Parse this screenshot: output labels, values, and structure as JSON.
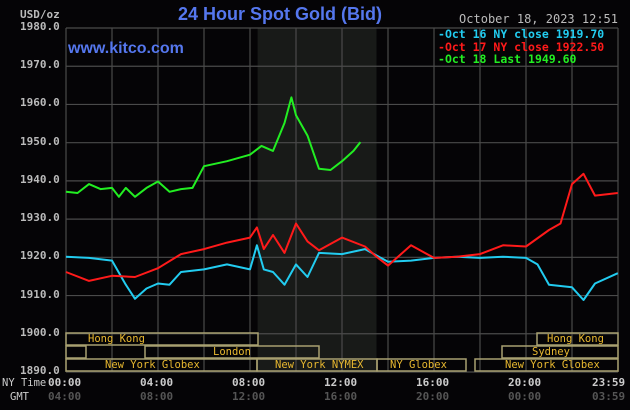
{
  "header": {
    "title": "24 Hour Spot Gold (Bid)",
    "date": "October 18, 2023 12:51",
    "unit": "USD/oz",
    "watermark": "www.kitco.com"
  },
  "legend": [
    {
      "label": "Oct 16 NY close 1919.70",
      "color": "#22ccf0"
    },
    {
      "label": "Oct 17 NY close 1922.50",
      "color": "#ff1a1a"
    },
    {
      "label": "Oct 18 Last 1949.60",
      "color": "#22ee22"
    }
  ],
  "axis": {
    "y_ticks": [
      "1980.0",
      "1970.0",
      "1960.0",
      "1950.0",
      "1940.0",
      "1930.0",
      "1920.0",
      "1910.0",
      "1900.0",
      "1890.0"
    ],
    "ny_time_label": "NY Time",
    "gmt_label": "GMT",
    "ny_ticks": [
      "00:00",
      "04:00",
      "08:00",
      "12:00",
      "16:00",
      "20:00",
      "23:59"
    ],
    "gmt_ticks": [
      "04:00",
      "08:00",
      "12:00",
      "16:00",
      "20:00",
      "00:00",
      "03:59"
    ]
  },
  "sessions": {
    "hong_kong_1": "Hong Kong",
    "london": "London",
    "ny_globex_1": "New York Globex",
    "ny_nymex": "New York NYMEX",
    "ny_globex_2": "NY Globex",
    "hong_kong_2": "Hong Kong",
    "sydney": "Sydney",
    "ny_globex_3": "New York Globex"
  },
  "chart_data": {
    "type": "line",
    "title": "24 Hour Spot Gold (Bid)",
    "xlabel": "NY Time / GMT",
    "ylabel": "USD/oz",
    "ylim": [
      1890,
      1980
    ],
    "xlim_hours": [
      0,
      24
    ],
    "grid": true,
    "legend_position": "top-right",
    "shaded_region_hours": [
      8.33,
      13.5
    ],
    "series": [
      {
        "name": "Oct 16 NY close 1919.70",
        "color": "#22ccf0",
        "x_hours": [
          0,
          1,
          2,
          2.6,
          3,
          3.5,
          4,
          4.5,
          5,
          6,
          7,
          8,
          8.3,
          8.6,
          9,
          9.5,
          10,
          10.5,
          11,
          12,
          13,
          14,
          15,
          16,
          17,
          18,
          19,
          20,
          20.5,
          21,
          22,
          22.5,
          23,
          23.99
        ],
        "values": [
          1920,
          1920,
          1919,
          1913,
          1909,
          1912,
          1913,
          1913,
          1916,
          1917,
          1918,
          1917,
          1923,
          1917,
          1916,
          1913,
          1918,
          1915,
          1921,
          1921,
          1922,
          1919,
          1919,
          1920,
          1920,
          1920,
          1920,
          1920,
          1918,
          1913,
          1912,
          1909,
          1913,
          1916
        ]
      },
      {
        "name": "Oct 17 NY close 1922.50",
        "color": "#ff1a1a",
        "x_hours": [
          0,
          1,
          2,
          3,
          4,
          5,
          6,
          7,
          8,
          8.3,
          8.6,
          9,
          9.5,
          10,
          10.5,
          11,
          12,
          13,
          13.5,
          14,
          15,
          16,
          17,
          18,
          19,
          20,
          21,
          21.5,
          22,
          22.5,
          23,
          23.99
        ],
        "values": [
          1916,
          1914,
          1915,
          1915,
          1917,
          1921,
          1922,
          1924,
          1925,
          1928,
          1922,
          1926,
          1921,
          1929,
          1924,
          1922,
          1925,
          1923,
          1920,
          1918,
          1923,
          1920,
          1920,
          1921,
          1923,
          1923,
          1927,
          1929,
          1939,
          1942,
          1936,
          1937
        ]
      },
      {
        "name": "Oct 18 Last 1949.60",
        "color": "#22ee22",
        "x_hours": [
          0,
          0.5,
          1,
          1.5,
          2,
          2.3,
          2.6,
          3,
          3.5,
          4,
          4.5,
          5,
          5.5,
          6,
          7,
          8,
          8.5,
          9,
          9.5,
          9.8,
          10,
          10.5,
          11,
          11.5,
          12,
          12.5,
          12.8
        ],
        "values": [
          1937,
          1937,
          1939,
          1938,
          1938,
          1936,
          1938,
          1936,
          1938,
          1940,
          1937,
          1938,
          1938,
          1944,
          1945,
          1947,
          1949,
          1948,
          1955,
          1962,
          1957,
          1952,
          1943,
          1943,
          1945,
          1948,
          1950
        ]
      }
    ]
  }
}
